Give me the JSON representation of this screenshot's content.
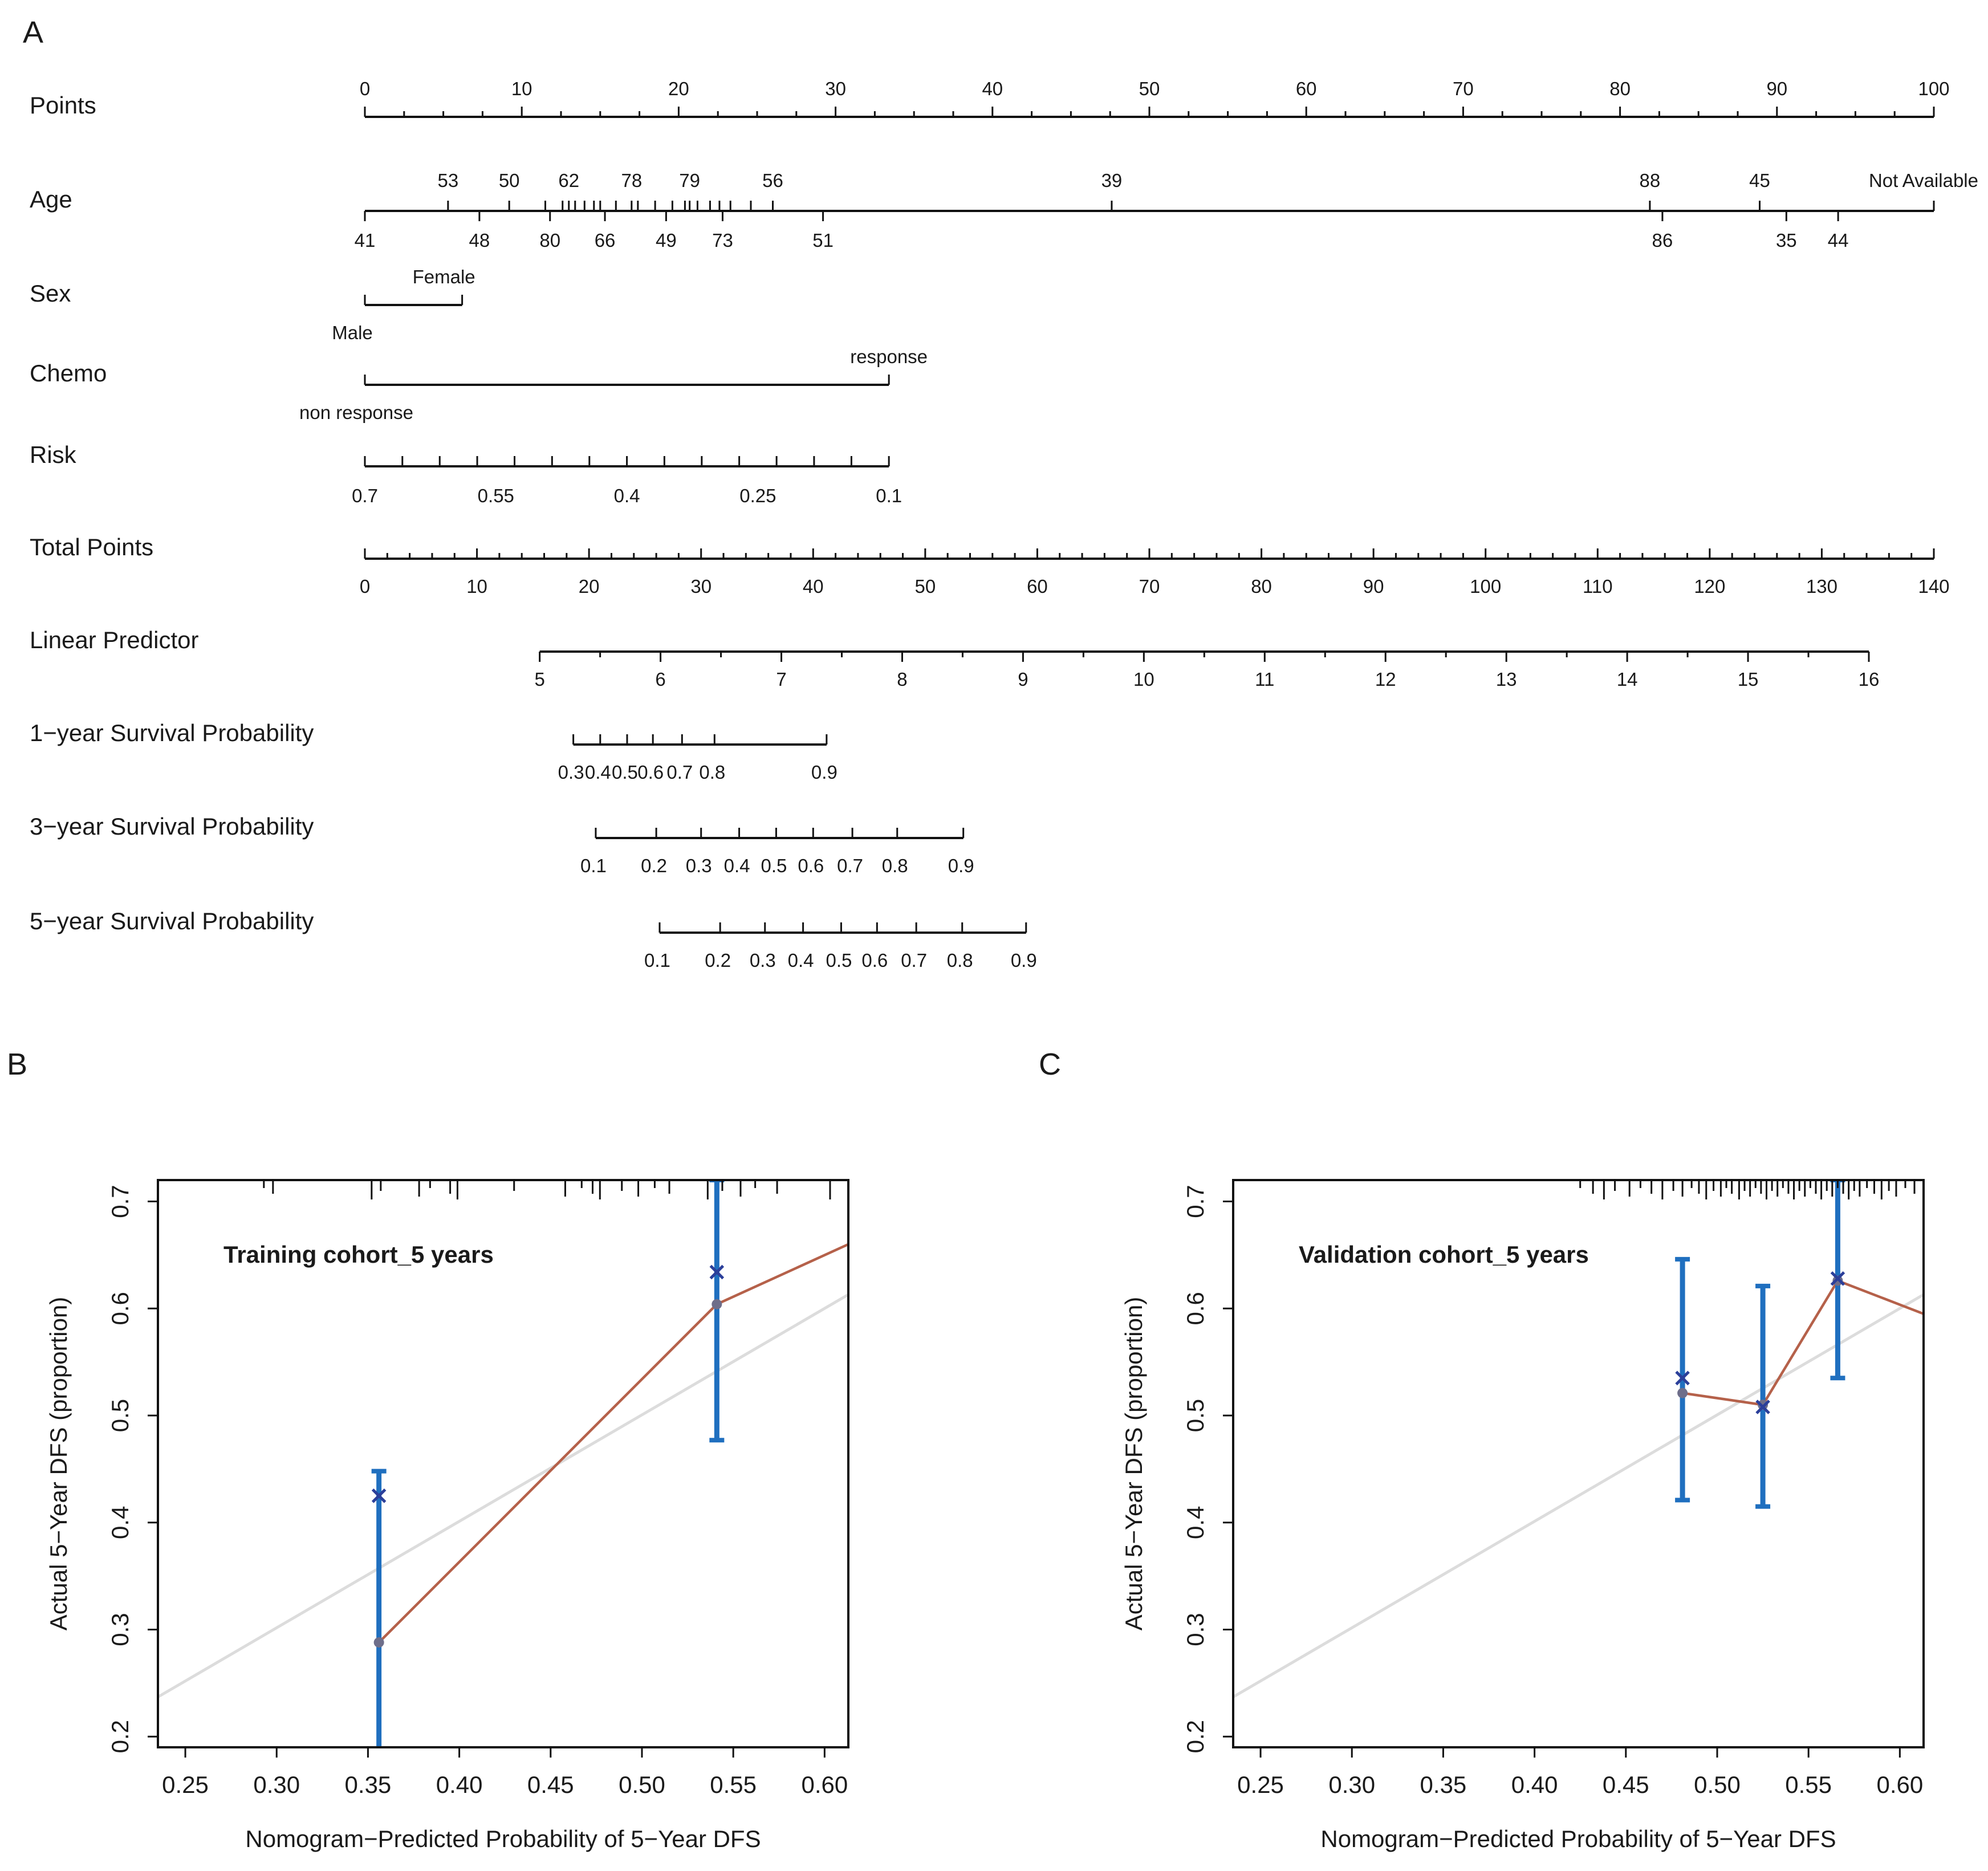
{
  "panel_labels": {
    "a": "A",
    "b": "B",
    "c": "C"
  },
  "chart_data": [
    {
      "type": "nomogram",
      "panel": "A",
      "rows": [
        {
          "id": "points",
          "label": "Points",
          "kind": "scale",
          "range": [
            0,
            100
          ],
          "tick_labels": [
            "0",
            "10",
            "20",
            "30",
            "40",
            "50",
            "60",
            "70",
            "80",
            "90",
            "100"
          ],
          "tick_values": [
            0,
            10,
            20,
            30,
            40,
            50,
            60,
            70,
            80,
            90,
            100
          ],
          "minor_step": 2.5
        },
        {
          "id": "age",
          "label": "Age",
          "kind": "categorical",
          "levels_above": [
            {
              "label": "53",
              "points": 5.3
            },
            {
              "label": "50",
              "points": 9.2
            },
            {
              "label": "62",
              "points": 13.0
            },
            {
              "label": "78",
              "points": 17.0
            },
            {
              "label": "79",
              "points": 20.7
            },
            {
              "label": "56",
              "points": 26.0
            },
            {
              "label": "39",
              "points": 47.6
            },
            {
              "label": "88",
              "points": 81.9
            },
            {
              "label": "45",
              "points": 88.9
            },
            {
              "label": "Not Available",
              "points": 100
            }
          ],
          "levels_below": [
            {
              "label": "41",
              "points": 0
            },
            {
              "label": "48",
              "points": 7.3
            },
            {
              "label": "80",
              "points": 11.8
            },
            {
              "label": "66",
              "points": 15.3
            },
            {
              "label": "49",
              "points": 19.2
            },
            {
              "label": "73",
              "points": 22.8
            },
            {
              "label": "51",
              "points": 29.2
            },
            {
              "label": "86",
              "points": 82.7
            },
            {
              "label": "35",
              "points": 90.6
            },
            {
              "label": "44",
              "points": 93.9
            }
          ],
          "unlabeled_ticks": [
            11.5,
            12.6,
            13.4,
            14.0,
            14.6,
            15.0,
            16.0,
            17.4,
            18.5,
            19.6,
            20.4,
            21.2,
            22.0,
            22.6,
            23.3,
            24.6
          ]
        },
        {
          "id": "sex",
          "label": "Sex",
          "kind": "binary",
          "levels_above": [
            {
              "label": "Female",
              "points": 6.2
            }
          ],
          "levels_below": [
            {
              "label": "Male",
              "points": 0
            }
          ]
        },
        {
          "id": "chemo",
          "label": "Chemo",
          "kind": "binary",
          "levels_above": [
            {
              "label": "response",
              "points": 33.4
            }
          ],
          "levels_below": [
            {
              "label": "non response",
              "points": 0
            }
          ]
        },
        {
          "id": "risk",
          "label": "Risk",
          "kind": "scale",
          "tick_labels": [
            "0.7",
            "0.55",
            "0.4",
            "0.25",
            "0.1"
          ],
          "tick_points": [
            0,
            8.35,
            16.7,
            25.05,
            33.4
          ],
          "minor_points": [
            0,
            2.39,
            4.77,
            7.16,
            9.54,
            11.93,
            14.31,
            16.7,
            19.09,
            21.47,
            23.86,
            26.24,
            28.63,
            31.01,
            33.4
          ]
        },
        {
          "id": "total_points",
          "label": "Total Points",
          "kind": "scale",
          "range": [
            0,
            140
          ],
          "tick_labels": [
            "0",
            "10",
            "20",
            "30",
            "40",
            "50",
            "60",
            "70",
            "80",
            "90",
            "100",
            "110",
            "120",
            "130",
            "140"
          ],
          "tick_values": [
            0,
            10,
            20,
            30,
            40,
            50,
            60,
            70,
            80,
            90,
            100,
            110,
            120,
            130,
            140
          ],
          "minor_step": 2
        },
        {
          "id": "linear_predictor",
          "label": "Linear Predictor",
          "kind": "scale",
          "tick_labels": [
            "5",
            "6",
            "7",
            "8",
            "9",
            "10",
            "11",
            "12",
            "13",
            "14",
            "15",
            "16"
          ],
          "tick_values": [
            5,
            6,
            7,
            8,
            9,
            10,
            11,
            12,
            13,
            14,
            15,
            16
          ],
          "total_points_at_5": 15.6,
          "total_points_at_16": 134.2,
          "minor_step": 0.5
        },
        {
          "id": "surv1",
          "label": "1−year Survival Probability",
          "kind": "scale",
          "tick_labels": [
            "0.3",
            "0.4",
            "0.5",
            "0.6",
            "0.7",
            "0.8",
            "0.9"
          ],
          "tick_total_points": [
            18.6,
            21.0,
            23.4,
            25.7,
            28.3,
            31.2,
            41.2
          ]
        },
        {
          "id": "surv3",
          "label": "3−year Survival Probability",
          "kind": "scale",
          "tick_labels": [
            "0.1",
            "0.2",
            "0.3",
            "0.4",
            "0.5",
            "0.6",
            "0.7",
            "0.8",
            "0.9"
          ],
          "tick_total_points": [
            20.6,
            26.0,
            30.0,
            33.4,
            36.7,
            40.0,
            43.5,
            47.5,
            53.4
          ]
        },
        {
          "id": "surv5",
          "label": "5−year Survival Probability",
          "kind": "scale",
          "tick_labels": [
            "0.1",
            "0.2",
            "0.3",
            "0.4",
            "0.5",
            "0.6",
            "0.7",
            "0.8",
            "0.9"
          ],
          "tick_total_points": [
            26.3,
            31.7,
            35.7,
            39.1,
            42.5,
            45.7,
            49.2,
            53.3,
            59.0
          ]
        }
      ]
    },
    {
      "type": "calibration",
      "panel": "B",
      "annotation": "Training cohort_5 years",
      "xlabel": "Nomogram−Predicted Probability of 5−Year DFS",
      "ylabel": "Actual 5−Year DFS (proportion)",
      "xlim": [
        0.235,
        0.613
      ],
      "ylim": [
        0.19,
        0.72
      ],
      "x_ticks": [
        "0.25",
        "0.30",
        "0.35",
        "0.40",
        "0.45",
        "0.50",
        "0.55",
        "0.60"
      ],
      "y_ticks": [
        "0.2",
        "0.3",
        "0.4",
        "0.5",
        "0.6",
        "0.7"
      ],
      "ideal_line": {
        "from": [
          0.235,
          0.237
        ],
        "to": [
          0.613,
          0.613
        ],
        "color": "#dcdcdc"
      },
      "apparent": {
        "x": [
          0.356,
          0.541
        ],
        "y": [
          0.288,
          0.604
        ],
        "extend_to": [
          0.613,
          0.66
        ],
        "color": "#b5614a"
      },
      "bias_corrected": {
        "x": [
          0.356,
          0.541
        ],
        "y": [
          0.425,
          0.634
        ],
        "marker": "x"
      },
      "error_bars": [
        {
          "x": 0.356,
          "low": 0.183,
          "high": 0.448
        },
        {
          "x": 0.541,
          "low": 0.477,
          "high": 0.72
        }
      ],
      "rug": [
        0.293,
        0.298,
        0.352,
        0.357,
        0.378,
        0.384,
        0.395,
        0.399,
        0.43,
        0.458,
        0.467,
        0.473,
        0.477,
        0.489,
        0.498,
        0.507,
        0.515,
        0.536,
        0.544,
        0.554,
        0.562,
        0.574,
        0.603
      ]
    },
    {
      "type": "calibration",
      "panel": "C",
      "annotation": "Validation cohort_5 years",
      "xlabel": "Nomogram−Predicted Probability of 5−Year DFS",
      "ylabel": "Actual 5−Year DFS (proportion)",
      "xlim": [
        0.235,
        0.613
      ],
      "ylim": [
        0.19,
        0.72
      ],
      "x_ticks": [
        "0.25",
        "0.30",
        "0.35",
        "0.40",
        "0.45",
        "0.50",
        "0.55",
        "0.60"
      ],
      "y_ticks": [
        "0.2",
        "0.3",
        "0.4",
        "0.5",
        "0.6",
        "0.7"
      ],
      "ideal_line": {
        "from": [
          0.235,
          0.237
        ],
        "to": [
          0.613,
          0.613
        ],
        "color": "#dcdcdc"
      },
      "apparent": {
        "x": [
          0.481,
          0.525,
          0.566
        ],
        "y": [
          0.521,
          0.51,
          0.626
        ],
        "extend_to": [
          0.613,
          0.595
        ],
        "color": "#b5614a"
      },
      "bias_corrected": {
        "x": [
          0.481,
          0.525,
          0.566
        ],
        "y": [
          0.535,
          0.508,
          0.628
        ],
        "marker": "x"
      },
      "error_bars": [
        {
          "x": 0.481,
          "low": 0.421,
          "high": 0.646
        },
        {
          "x": 0.525,
          "low": 0.415,
          "high": 0.621
        },
        {
          "x": 0.566,
          "low": 0.535,
          "high": 0.72
        }
      ],
      "rug": [
        0.425,
        0.432,
        0.438,
        0.444,
        0.452,
        0.458,
        0.464,
        0.47,
        0.476,
        0.481,
        0.486,
        0.49,
        0.494,
        0.498,
        0.502,
        0.505,
        0.508,
        0.512,
        0.515,
        0.518,
        0.521,
        0.524,
        0.527,
        0.53,
        0.533,
        0.536,
        0.539,
        0.542,
        0.545,
        0.548,
        0.551,
        0.554,
        0.557,
        0.56,
        0.563,
        0.566,
        0.569,
        0.572,
        0.575,
        0.578,
        0.582,
        0.586,
        0.59,
        0.594,
        0.598,
        0.603,
        0.608
      ]
    }
  ],
  "colors": {
    "axis": "#111111",
    "error_bar": "#1f6fbf",
    "bias_marker": "#2b3f9a",
    "apparent_point": "#6e6e8a",
    "apparent_line": "#b5614a",
    "ideal_line": "#dcdcdc"
  }
}
